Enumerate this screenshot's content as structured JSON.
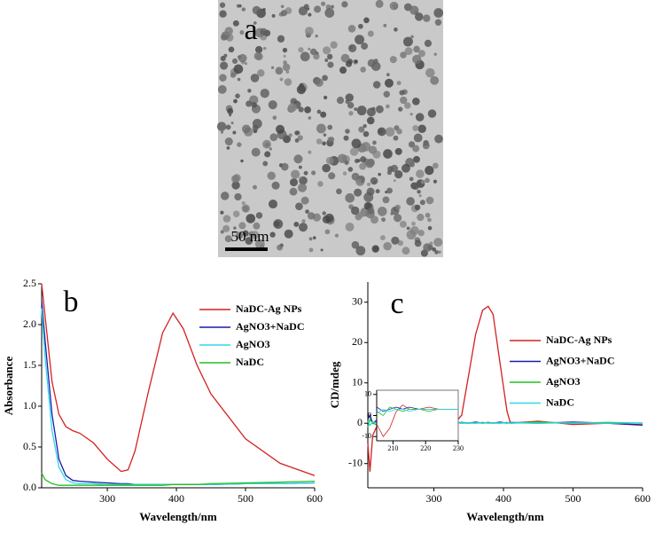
{
  "panel_a": {
    "label": "a",
    "scale_bar": "50 nm"
  },
  "chart_data": [
    {
      "type": "line",
      "panel_label": "b",
      "xlabel": "Wavelength/nm",
      "ylabel": "Absorbance",
      "xlim": [
        205,
        600
      ],
      "ylim": [
        0,
        2.5
      ],
      "xticks": [
        300,
        400,
        500,
        600
      ],
      "yticks": [
        {
          "value": 0,
          "label": "0.0"
        },
        0.5,
        {
          "value": 1,
          "label": "1.0"
        },
        1.5,
        {
          "value": 2,
          "label": "2.0"
        },
        2.5
      ],
      "x": [
        205,
        210,
        220,
        230,
        240,
        250,
        260,
        280,
        300,
        320,
        330,
        340,
        360,
        380,
        395,
        410,
        430,
        450,
        500,
        550,
        600
      ],
      "series": [
        {
          "name": "NaDC-Ag NPs",
          "color": "#d42020",
          "values": [
            2.5,
            2.1,
            1.3,
            0.9,
            0.75,
            0.7,
            0.67,
            0.55,
            0.35,
            0.2,
            0.22,
            0.45,
            1.2,
            1.9,
            2.14,
            1.95,
            1.5,
            1.15,
            0.6,
            0.3,
            0.15
          ]
        },
        {
          "name": "AgNO3+NaDC",
          "color": "#1a1aa8",
          "values": [
            2.3,
            1.8,
            0.9,
            0.35,
            0.15,
            0.09,
            0.08,
            0.07,
            0.06,
            0.05,
            0.05,
            0.04,
            0.04,
            0.04,
            0.04,
            0.04,
            0.04,
            0.04,
            0.05,
            0.05,
            0.06
          ]
        },
        {
          "name": "AgNO3",
          "color": "#30d8e8",
          "values": [
            2.2,
            1.6,
            0.7,
            0.25,
            0.1,
            0.06,
            0.05,
            0.05,
            0.04,
            0.04,
            0.04,
            0.04,
            0.04,
            0.04,
            0.04,
            0.04,
            0.04,
            0.04,
            0.05,
            0.05,
            0.06
          ]
        },
        {
          "name": "NaDC",
          "color": "#22c022",
          "values": [
            0.18,
            0.1,
            0.05,
            0.03,
            0.03,
            0.03,
            0.03,
            0.03,
            0.03,
            0.03,
            0.03,
            0.03,
            0.03,
            0.03,
            0.04,
            0.04,
            0.04,
            0.05,
            0.06,
            0.07,
            0.08
          ]
        }
      ]
    },
    {
      "type": "line",
      "panel_label": "c",
      "xlabel": "Wavelength/nm",
      "ylabel": "CD/mdeg",
      "xlim": [
        205,
        600
      ],
      "ylim": [
        -16,
        35
      ],
      "xticks": [
        300,
        400,
        500,
        600
      ],
      "yticks": [
        -10,
        0,
        10,
        20,
        30
      ],
      "x": [
        205,
        208,
        212,
        220,
        230,
        250,
        300,
        330,
        340,
        350,
        360,
        370,
        378,
        385,
        395,
        405,
        410,
        450,
        500,
        550,
        600
      ],
      "series": [
        {
          "name": "NaDC-Ag NPs",
          "color": "#d42020",
          "values": [
            -5,
            -12,
            -3,
            0,
            1,
            0,
            0,
            0,
            2,
            12,
            22,
            28,
            29,
            27,
            15,
            3,
            0,
            0.5,
            -0.3,
            0,
            -0.5
          ]
        },
        {
          "name": "AgNO3+NaDC",
          "color": "#1a1aa8",
          "values": [
            1,
            2,
            0,
            1,
            0.5,
            0,
            0.3,
            0,
            0.2,
            0,
            0.3,
            0,
            0.2,
            0,
            0.3,
            0,
            0.2,
            0,
            0.3,
            0,
            -0.4
          ]
        },
        {
          "name": "AgNO3",
          "color": "#22c022",
          "values": [
            -1,
            1,
            0,
            -0.5,
            0,
            0.3,
            0,
            0.2,
            0,
            0.1,
            0,
            0.2,
            0,
            0.1,
            0,
            0.2,
            0,
            0.3,
            0,
            0.2,
            0
          ]
        },
        {
          "name": "NaDC",
          "color": "#30d8e8",
          "values": [
            0.5,
            -0.5,
            0.3,
            0,
            0.2,
            0,
            0.1,
            0,
            0.1,
            0,
            0.1,
            0,
            0.1,
            0,
            0.1,
            0,
            0.1,
            0,
            0.1,
            0,
            0.1
          ]
        }
      ]
    },
    {
      "type": "line",
      "xlim": [
        205,
        230
      ],
      "ylim": [
        -12,
        12
      ],
      "xticks": [
        210,
        220,
        230
      ],
      "yticks": [
        -10,
        0,
        10
      ],
      "x": [
        205,
        207,
        209,
        211,
        213,
        215,
        218,
        221,
        224,
        227,
        230
      ],
      "series": [
        {
          "color": "#d42020",
          "values": [
            -4,
            -10,
            -6,
            2,
            5,
            3,
            3,
            4,
            3,
            3,
            3
          ]
        },
        {
          "color": "#1a1aa8",
          "values": [
            4,
            2,
            3,
            4,
            3,
            4,
            3,
            3,
            3,
            3,
            3
          ]
        },
        {
          "color": "#22c022",
          "values": [
            2,
            0,
            4,
            3,
            2,
            3,
            3,
            2,
            3,
            3,
            3
          ]
        },
        {
          "color": "#30d8e8",
          "values": [
            1,
            3,
            2,
            3,
            3,
            2,
            3,
            3,
            3,
            3,
            3
          ]
        }
      ]
    }
  ]
}
